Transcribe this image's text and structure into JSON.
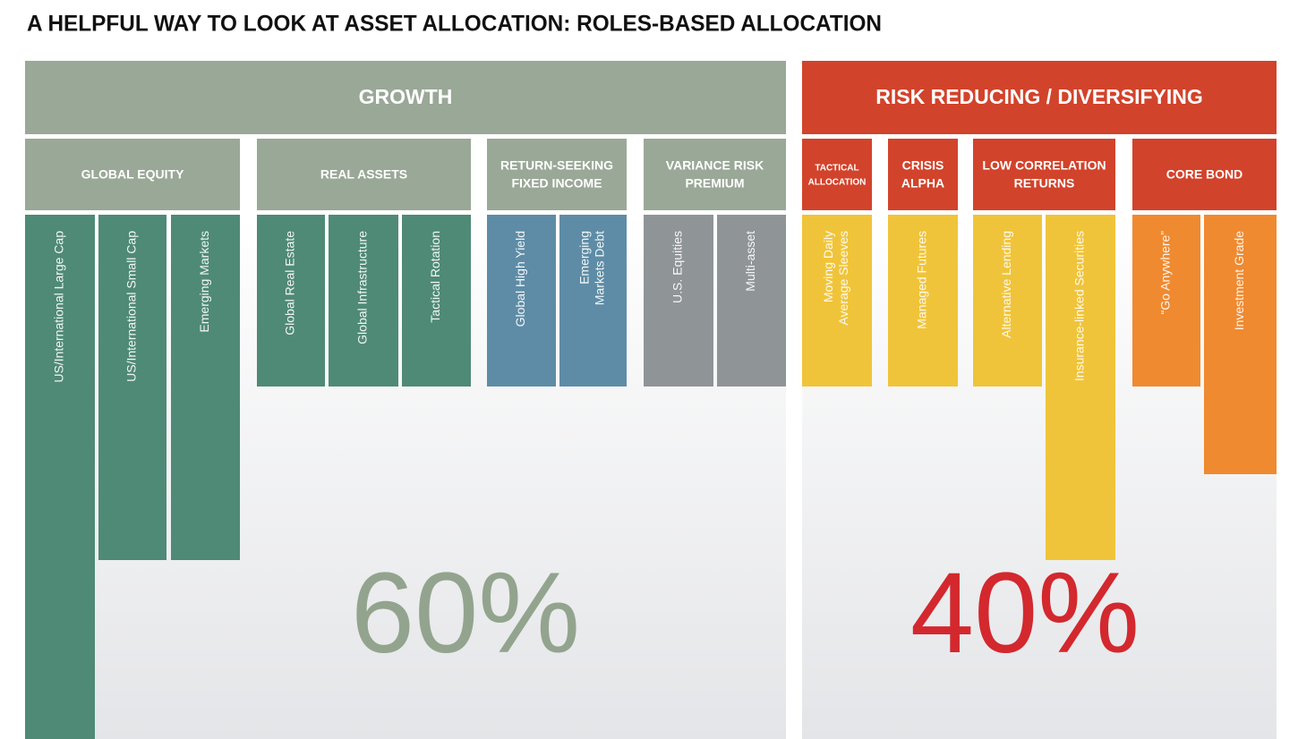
{
  "title": "A HELPFUL WAY TO LOOK AT ASSET ALLOCATION: ROLES-BASED ALLOCATION",
  "groups": [
    {
      "label": "GROWTH",
      "share": "60%",
      "categories": [
        {
          "label": [
            "GLOBAL EQUITY"
          ],
          "items": [
            [
              "US/International Large Cap"
            ],
            [
              "US/International Small Cap"
            ],
            [
              "Emerging Markets"
            ]
          ]
        },
        {
          "label": [
            "REAL ASSETS"
          ],
          "items": [
            [
              "Global Real Estate"
            ],
            [
              "Global Infrastructure"
            ],
            [
              "Tactical Rotation"
            ]
          ]
        },
        {
          "label": [
            "RETURN-SEEKING",
            "FIXED INCOME"
          ],
          "items": [
            [
              "Global High Yield"
            ],
            [
              "Emerging",
              "Markets Debt"
            ]
          ]
        },
        {
          "label": [
            "VARIANCE RISK",
            "PREMIUM"
          ],
          "items": [
            [
              "U.S. Equities"
            ],
            [
              "Multi-asset"
            ]
          ]
        }
      ]
    },
    {
      "label": "RISK REDUCING / DIVERSIFYING",
      "share": "40%",
      "categories": [
        {
          "label": [
            "TACTICAL",
            "ALLOCATION"
          ],
          "items": [
            [
              "Moving Daily",
              "Average Sleeves"
            ]
          ]
        },
        {
          "label": [
            "CRISIS",
            "ALPHA"
          ],
          "items": [
            [
              "Managed Futures"
            ]
          ]
        },
        {
          "label": [
            "LOW CORRELATION",
            "RETURNS"
          ],
          "items": [
            [
              "Alternative Lending"
            ],
            [
              "Insurance-linked Securities"
            ]
          ]
        },
        {
          "label": [
            "CORE BOND"
          ],
          "items": [
            [
              "“Go Anywhere”"
            ],
            [
              "Investment Grade"
            ]
          ]
        }
      ]
    }
  ]
}
